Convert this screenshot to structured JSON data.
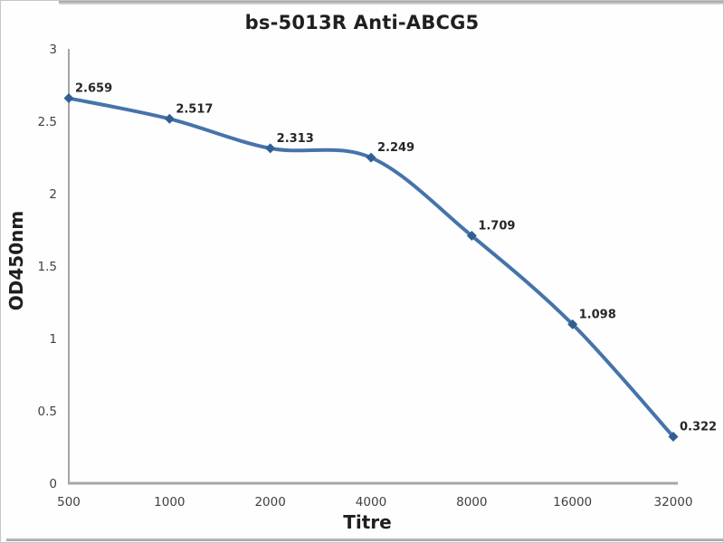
{
  "frame": {
    "background": "#fefefe",
    "border_color": "#c6c6c6"
  },
  "chart_data": {
    "type": "line",
    "title": "bs-5013R Anti-ABCG5",
    "xlabel": "Titre",
    "ylabel": "OD450nm",
    "categories": [
      "500",
      "1000",
      "2000",
      "4000",
      "8000",
      "16000",
      "32000"
    ],
    "values": [
      2.659,
      2.517,
      2.313,
      2.249,
      1.709,
      1.098,
      0.322
    ],
    "data_labels": [
      "2.659",
      "2.517",
      "2.313",
      "2.249",
      "1.709",
      "1.098",
      "0.322"
    ],
    "y_ticks": [
      "3",
      "2.5",
      "2",
      "1.5",
      "1",
      "0.5",
      "0"
    ],
    "y_tick_values": [
      3,
      2.5,
      2,
      1.5,
      1,
      0.5,
      0
    ],
    "ylim": [
      0,
      3
    ],
    "x_scale": "log2-categorical",
    "grid": false,
    "legend": "none",
    "marker_shape": "diamond",
    "line_color": "#4673aa",
    "marker_color": "#315f93",
    "axis_color": "#a6a6a6",
    "label_color": "#262626"
  }
}
